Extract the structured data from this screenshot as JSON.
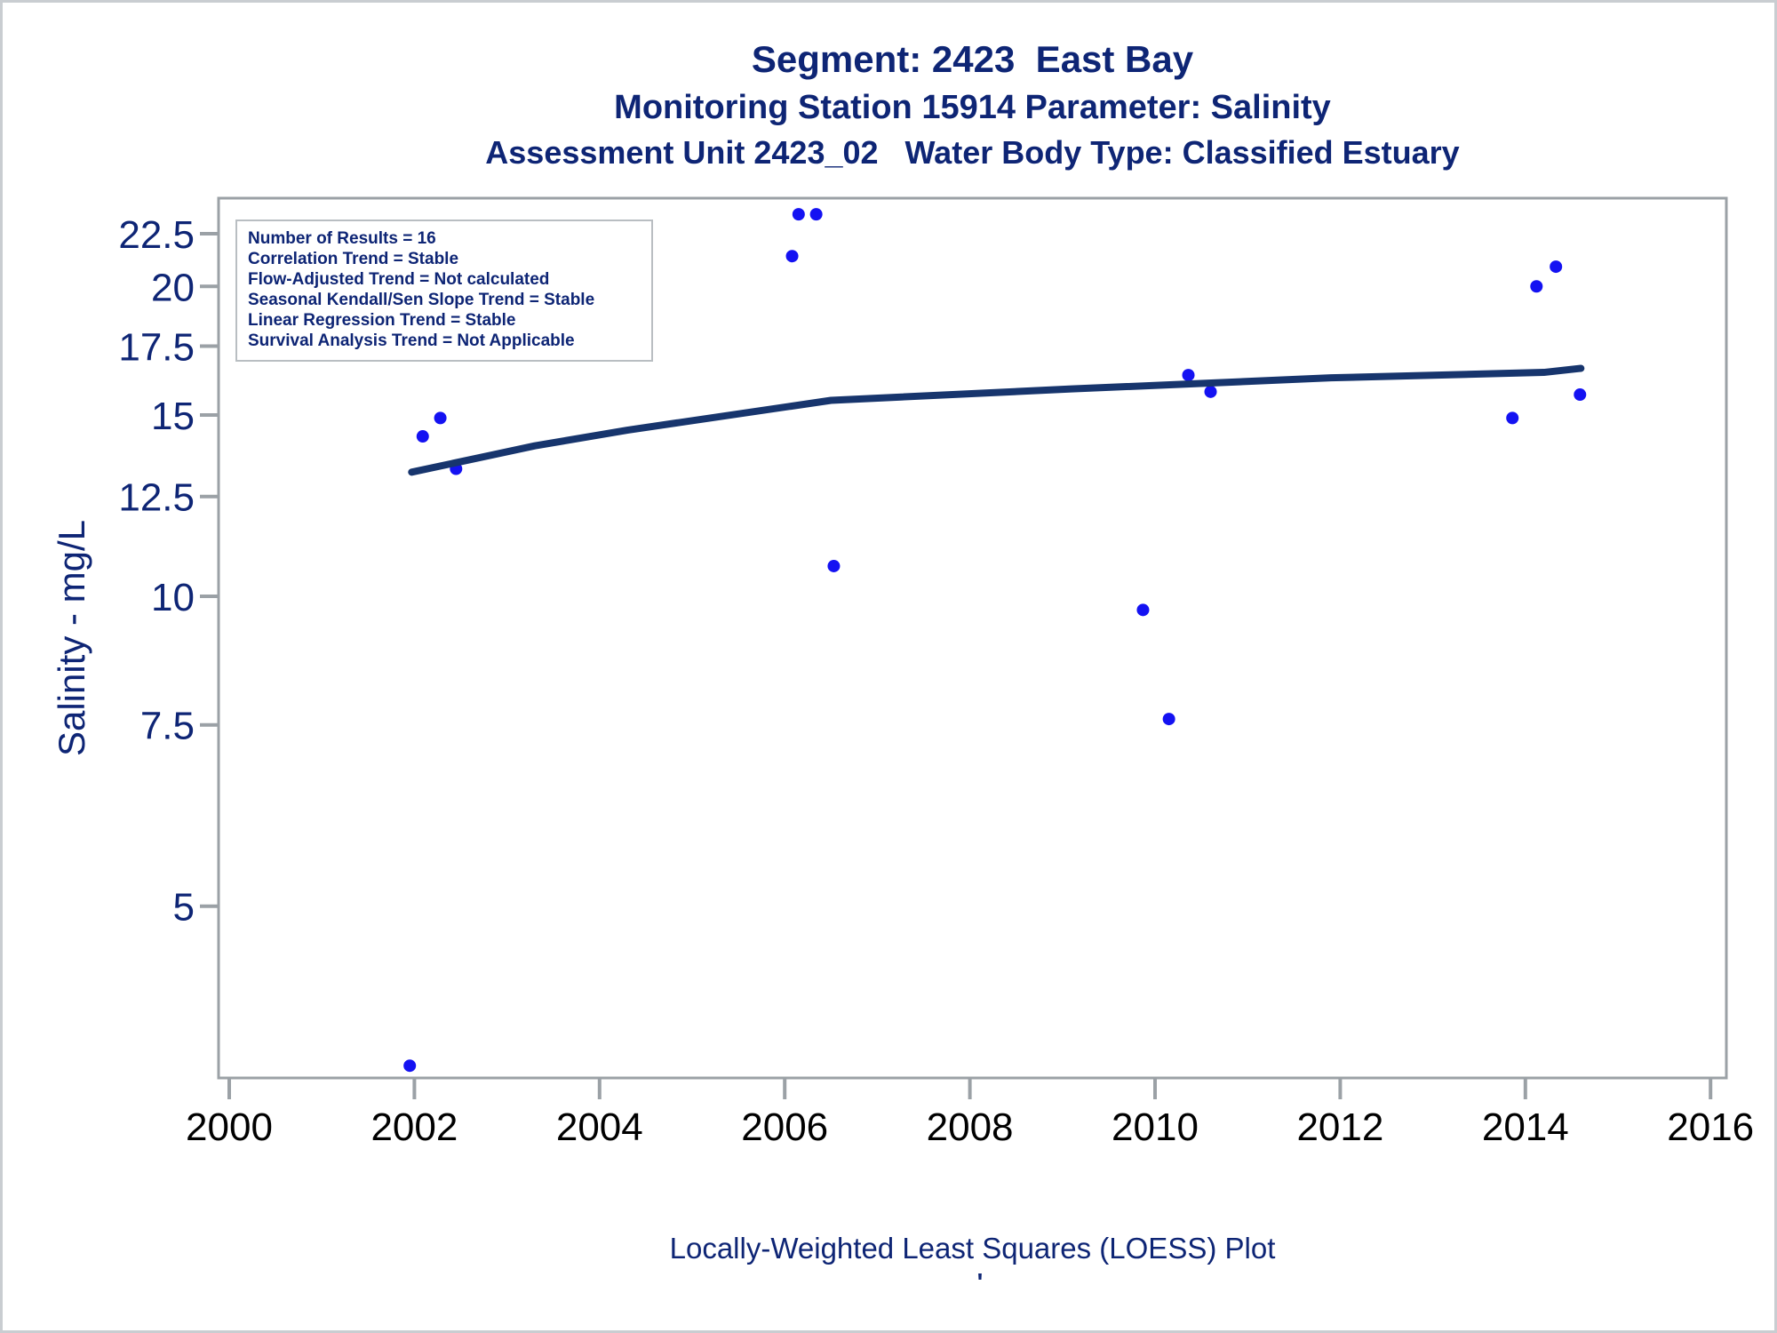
{
  "header": {
    "title_line1": "Segment: 2423  East Bay",
    "title_line2": "Monitoring Station 15914 Parameter: Salinity",
    "title_line3": "Assessment Unit 2423_02   Water Body Type: Classified Estuary"
  },
  "stats_box": {
    "lines": [
      "Number of Results = 16",
      "Correlation Trend = Stable",
      "Flow-Adjusted Trend = Not calculated",
      "Seasonal Kendall/Sen Slope Trend = Stable",
      "Linear Regression Trend = Stable",
      "Survival Analysis Trend = Not Applicable"
    ]
  },
  "footer": {
    "caption": "Locally-Weighted Least Squares (LOESS) Plot",
    "small_mark": "'"
  },
  "colors": {
    "navy_text": "#0E2575",
    "point_blue": "#1412F2",
    "loess_line": "#17356D",
    "axis_gray": "#9BA1A6",
    "x_label_black": "#000000",
    "box_border_gray": "#B9BEC2",
    "page_border_gray": "#C9CDD1"
  },
  "chart_data": {
    "type": "scatter",
    "title": "Segment: 2423  East Bay",
    "subtitle": "Monitoring Station 15914 Parameter: Salinity",
    "xlabel": "",
    "ylabel": "Salinity - mg/L",
    "y_scale": "log",
    "grid": false,
    "legend_position": "none",
    "xlim": [
      1999.89,
      2016.17
    ],
    "ylim": [
      3.4,
      24.4
    ],
    "x_ticks": [
      2000,
      2002,
      2004,
      2006,
      2008,
      2010,
      2012,
      2014,
      2016
    ],
    "y_ticks": [
      22.5,
      20,
      17.5,
      15,
      12.5,
      10,
      7.5,
      5
    ],
    "series": [
      {
        "name": "observations",
        "kind": "scatter",
        "points": [
          [
            2001.95,
            3.5
          ],
          [
            2002.09,
            14.3
          ],
          [
            2002.28,
            14.9
          ],
          [
            2002.45,
            13.3
          ],
          [
            2006.08,
            21.4
          ],
          [
            2006.15,
            23.5
          ],
          [
            2006.34,
            23.5
          ],
          [
            2006.53,
            10.7
          ],
          [
            2009.87,
            9.7
          ],
          [
            2010.15,
            7.6
          ],
          [
            2010.36,
            16.4
          ],
          [
            2010.6,
            15.8
          ],
          [
            2013.86,
            14.9
          ],
          [
            2014.12,
            20.0
          ],
          [
            2014.33,
            20.9
          ],
          [
            2014.59,
            15.7
          ]
        ]
      },
      {
        "name": "loess_fit",
        "kind": "line",
        "points": [
          [
            2001.97,
            13.2
          ],
          [
            2003.3,
            14.0
          ],
          [
            2004.3,
            14.5
          ],
          [
            2006.5,
            15.5
          ],
          [
            2009.1,
            15.9
          ],
          [
            2011.9,
            16.3
          ],
          [
            2014.2,
            16.5
          ],
          [
            2014.6,
            16.65
          ]
        ]
      }
    ]
  }
}
